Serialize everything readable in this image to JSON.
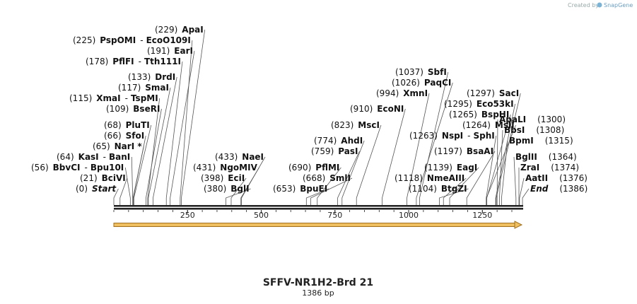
{
  "credit": {
    "prefix": "Created by",
    "brand": "SnapGene"
  },
  "sequence": {
    "name": "SFFV-NR1H2-Brd 21",
    "length_label": "1386 bp",
    "length": 1386
  },
  "axis_ticks": [
    250,
    500,
    750,
    1000,
    1250
  ],
  "colors": {
    "feature_arrow": "#f0c060",
    "feature_arrow_border": "#a07020",
    "backbone": "#222222",
    "line": "#444444"
  },
  "sites": [
    {
      "pos": 229,
      "name": "ApaI"
    },
    {
      "pos": 225,
      "name": "PspOMI",
      "alt": "EcoO109I"
    },
    {
      "pos": 191,
      "name": "EarI"
    },
    {
      "pos": 178,
      "name": "PflFI",
      "alt": "Tth111I"
    },
    {
      "pos": 133,
      "name": "DrdI"
    },
    {
      "pos": 117,
      "name": "SmaI"
    },
    {
      "pos": 115,
      "name": "XmaI",
      "alt": "TspMI"
    },
    {
      "pos": 109,
      "name": "BseRI"
    },
    {
      "pos": 68,
      "name": "PluTI"
    },
    {
      "pos": 66,
      "name": "SfoI"
    },
    {
      "pos": 65,
      "name": "NarI *"
    },
    {
      "pos": 64,
      "name": "KasI",
      "alt": "BanI"
    },
    {
      "pos": 56,
      "name": "BbvCI",
      "alt": "Bpu10I"
    },
    {
      "pos": 21,
      "name": "BciVI"
    },
    {
      "pos": 0,
      "name": "Start",
      "italic": true
    },
    {
      "pos": 433,
      "name": "NaeI"
    },
    {
      "pos": 431,
      "name": "NgoMIV"
    },
    {
      "pos": 398,
      "name": "EciI"
    },
    {
      "pos": 380,
      "name": "BglI"
    },
    {
      "pos": 690,
      "name": "PflMI"
    },
    {
      "pos": 668,
      "name": "SmlI"
    },
    {
      "pos": 653,
      "name": "BpuEI"
    },
    {
      "pos": 823,
      "name": "MscI"
    },
    {
      "pos": 774,
      "name": "AhdI"
    },
    {
      "pos": 759,
      "name": "PasI"
    },
    {
      "pos": 910,
      "name": "EcoNI"
    },
    {
      "pos": 1037,
      "name": "SbfI"
    },
    {
      "pos": 1026,
      "name": "PaqCI"
    },
    {
      "pos": 994,
      "name": "XmnI"
    },
    {
      "pos": 1263,
      "name": "NspI",
      "alt": "SphI"
    },
    {
      "pos": 1197,
      "name": "BsaAI"
    },
    {
      "pos": 1139,
      "name": "EagI"
    },
    {
      "pos": 1118,
      "name": "NmeAIII"
    },
    {
      "pos": 1104,
      "name": "BtgZI"
    },
    {
      "pos": 1297,
      "name": "SacI"
    },
    {
      "pos": 1295,
      "name": "Eco53kI"
    },
    {
      "pos": 1265,
      "name": "BspHI"
    },
    {
      "pos": 1264,
      "name": "MslI"
    },
    {
      "pos": 1300,
      "name": "ApaLI"
    },
    {
      "pos": 1308,
      "name": "BbsI"
    },
    {
      "pos": 1315,
      "name": "BpmI"
    },
    {
      "pos": 1364,
      "name": "BglII"
    },
    {
      "pos": 1374,
      "name": "ZraI"
    },
    {
      "pos": 1376,
      "name": "AatII"
    },
    {
      "pos": 1386,
      "name": "End",
      "italic": true
    }
  ]
}
